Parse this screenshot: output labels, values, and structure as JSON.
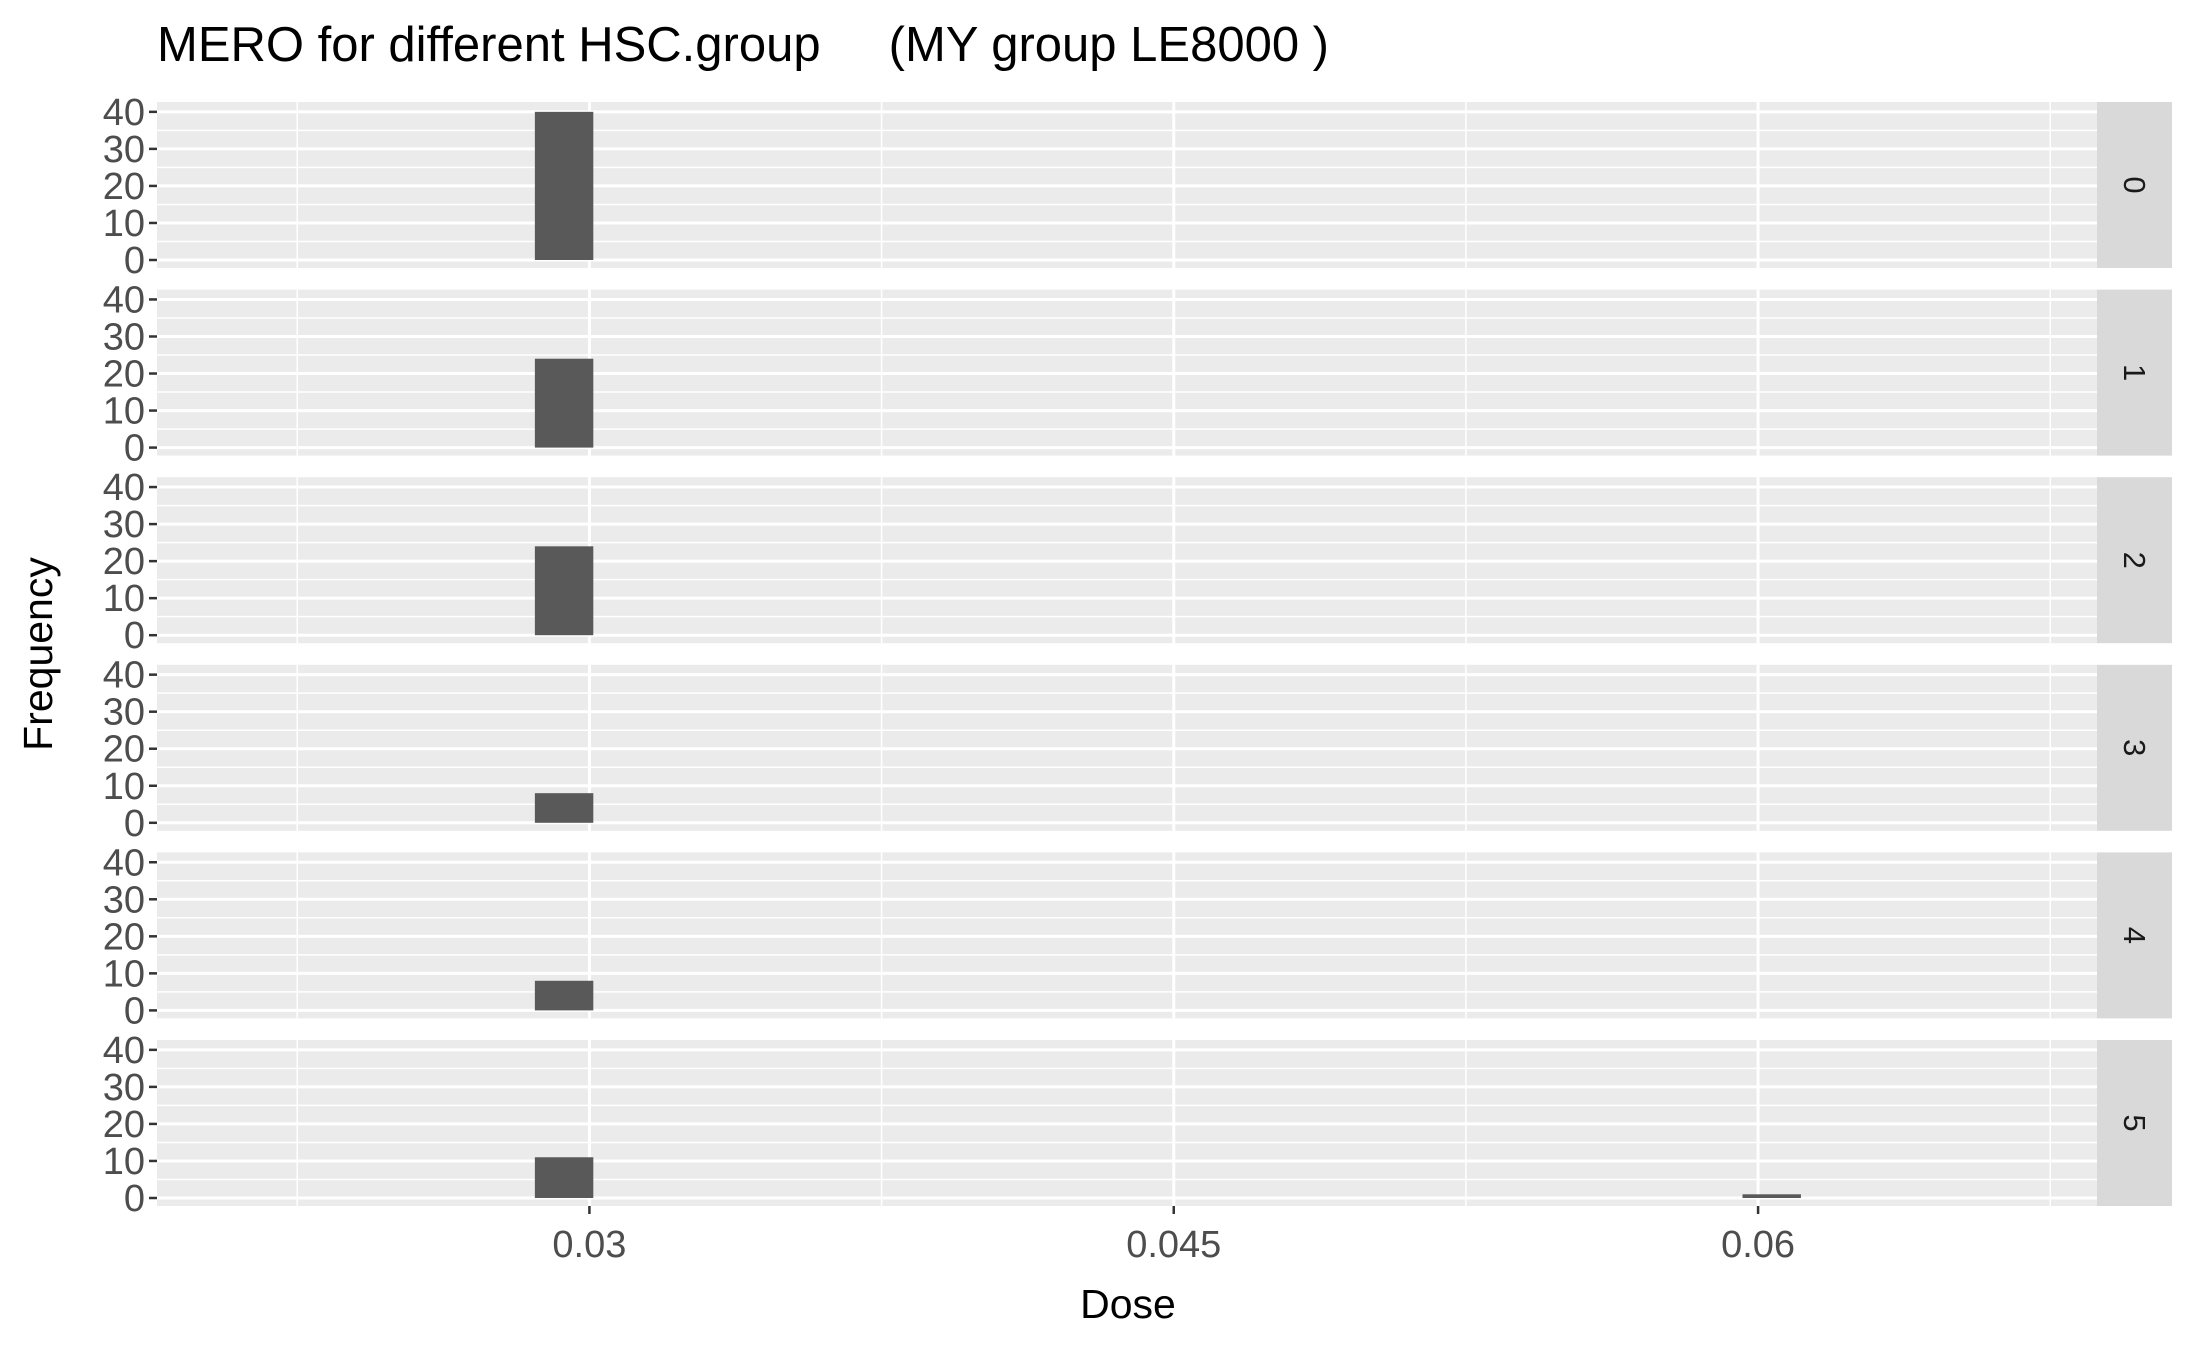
{
  "chart_data": {
    "type": "bar",
    "title": "MERO for different HSC.group     (MY group LE8000 )",
    "xlabel": "Dose",
    "ylabel": "Frequency",
    "x_ticks": [
      0.03,
      0.045,
      0.06
    ],
    "x_tick_labels": [
      "0.03",
      "0.045",
      "0.06"
    ],
    "xlim": [
      0.0189,
      0.0687
    ],
    "y_ticks": [
      0,
      10,
      20,
      30,
      40
    ],
    "ylim": [
      0,
      40.5
    ],
    "grid": true,
    "facet_variable": "HSC.group",
    "facets": [
      {
        "label": "0",
        "bars": [
          {
            "x_from": 0.0286,
            "x_to": 0.0301,
            "count": 40
          }
        ]
      },
      {
        "label": "1",
        "bars": [
          {
            "x_from": 0.0286,
            "x_to": 0.0301,
            "count": 24
          }
        ]
      },
      {
        "label": "2",
        "bars": [
          {
            "x_from": 0.0286,
            "x_to": 0.0301,
            "count": 24
          }
        ]
      },
      {
        "label": "3",
        "bars": [
          {
            "x_from": 0.0286,
            "x_to": 0.0301,
            "count": 8
          }
        ]
      },
      {
        "label": "4",
        "bars": [
          {
            "x_from": 0.0286,
            "x_to": 0.0301,
            "count": 8
          }
        ]
      },
      {
        "label": "5",
        "bars": [
          {
            "x_from": 0.0286,
            "x_to": 0.0301,
            "count": 11
          },
          {
            "x_from": 0.0596,
            "x_to": 0.0611,
            "count": 1
          }
        ]
      }
    ]
  },
  "colors": {
    "panel_background": "#ebebeb",
    "grid": "#ffffff",
    "bar_fill": "#595959",
    "strip_background": "#d9d9d9",
    "tick_text": "#4d4d4d",
    "tick_mark": "#333333"
  }
}
